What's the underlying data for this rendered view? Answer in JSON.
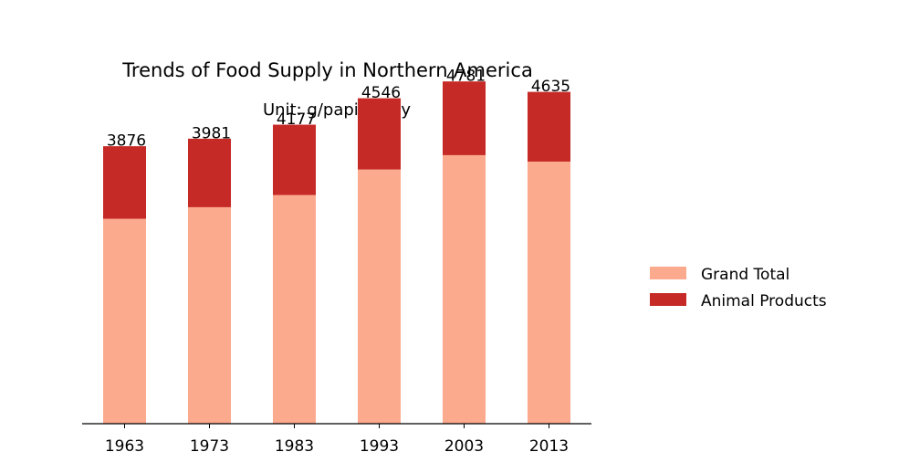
{
  "chart_data": {
    "type": "bar",
    "stacked": true,
    "title": "Trends of Food Supply in Northern America",
    "subtitle": "Unit: g/papita/day",
    "xlabel": "",
    "ylabel": "",
    "categories": [
      "1963",
      "1973",
      "1983",
      "1993",
      "2003",
      "2013"
    ],
    "series": [
      {
        "name": "Grand Total",
        "color": "#fcaa8e",
        "values": [
          2862,
          3024,
          3194,
          3551,
          3751,
          3661
        ]
      },
      {
        "name": "Animal Products",
        "color": "#c62a27",
        "values": [
          1014,
          957,
          983,
          995,
          1030,
          974
        ]
      }
    ],
    "totals": [
      "3876",
      "3981",
      "4177",
      "4546",
      "4781",
      "4635"
    ],
    "ylim": [
      0,
      5000
    ],
    "y_axis_visible": false,
    "grid": false,
    "legend_position": "right"
  }
}
